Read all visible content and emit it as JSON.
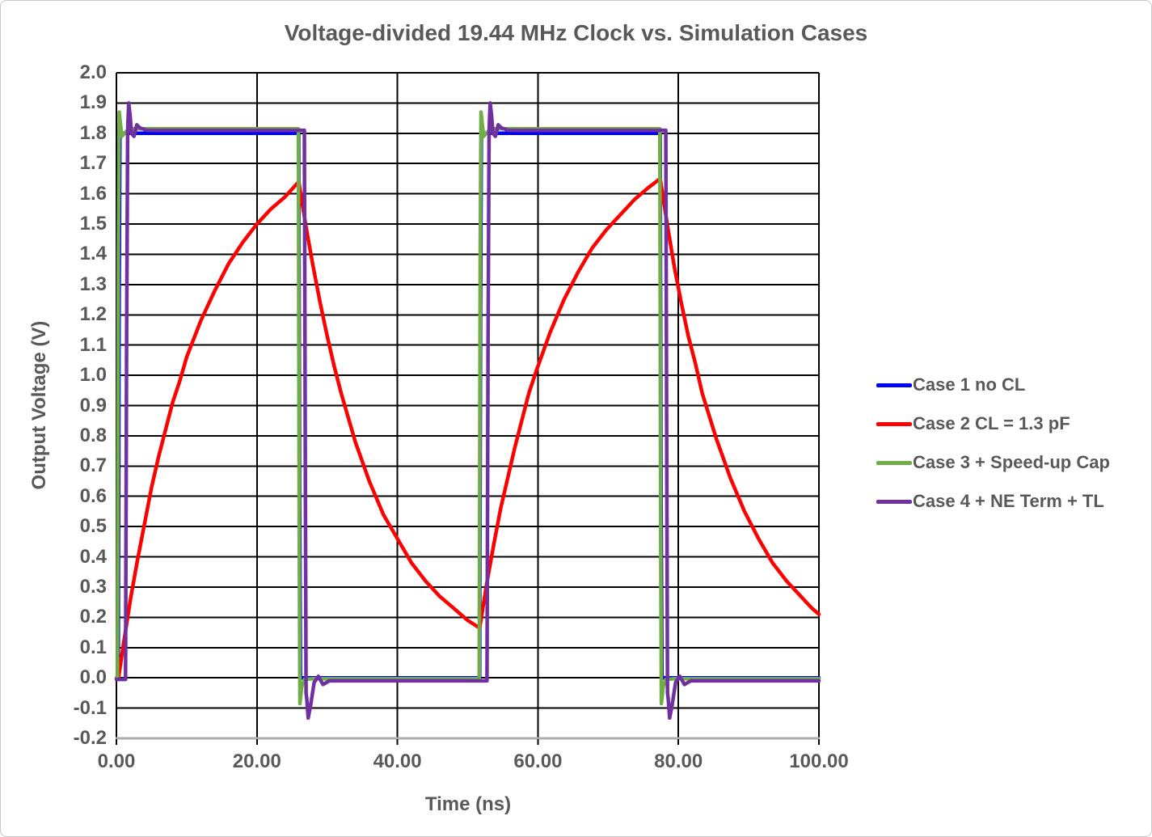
{
  "styles": {
    "text_color": "#595959",
    "grid_color": "#000000",
    "axis_line_color": "#ACACAC",
    "background": "#FFFFFF",
    "border_color": "#C9C9C9"
  },
  "chart_data": {
    "type": "line",
    "title": "Voltage-divided 19.44 MHz Clock vs. Simulation Cases",
    "xlabel": "Time (ns)",
    "ylabel": "Output Voltage (V)",
    "xlim": [
      0,
      100
    ],
    "ylim": [
      -0.2,
      2.0
    ],
    "grid": "both-black",
    "legend_position": "right",
    "clock_frequency_mhz": 19.44,
    "x_ticks": [
      {
        "value": 0,
        "label": "0.00"
      },
      {
        "value": 20,
        "label": "20.00"
      },
      {
        "value": 40,
        "label": "40.00"
      },
      {
        "value": 60,
        "label": "60.00"
      },
      {
        "value": 80,
        "label": "80.00"
      },
      {
        "value": 100,
        "label": "100.00"
      }
    ],
    "y_ticks": [
      {
        "value": 2.0,
        "label": "2.0"
      },
      {
        "value": 1.9,
        "label": "1.9"
      },
      {
        "value": 1.8,
        "label": "1.8"
      },
      {
        "value": 1.7,
        "label": "1.7"
      },
      {
        "value": 1.6,
        "label": "1.6"
      },
      {
        "value": 1.5,
        "label": "1.5"
      },
      {
        "value": 1.4,
        "label": "1.4"
      },
      {
        "value": 1.3,
        "label": "1.3"
      },
      {
        "value": 1.2,
        "label": "1.2"
      },
      {
        "value": 1.1,
        "label": "1.1"
      },
      {
        "value": 1.0,
        "label": "1.0"
      },
      {
        "value": 0.9,
        "label": "0.9"
      },
      {
        "value": 0.8,
        "label": "0.8"
      },
      {
        "value": 0.7,
        "label": "0.7"
      },
      {
        "value": 0.6,
        "label": "0.6"
      },
      {
        "value": 0.5,
        "label": "0.5"
      },
      {
        "value": 0.4,
        "label": "0.4"
      },
      {
        "value": 0.3,
        "label": "0.3"
      },
      {
        "value": 0.2,
        "label": "0.2"
      },
      {
        "value": 0.1,
        "label": "0.1"
      },
      {
        "value": 0.0,
        "label": "0.0"
      },
      {
        "value": -0.1,
        "label": "-0.1"
      },
      {
        "value": -0.2,
        "label": "-0.2"
      }
    ],
    "series": [
      {
        "name": "Case 1 no CL",
        "color": "#0000FF",
        "points": [
          [
            0,
            0
          ],
          [
            0.25,
            0
          ],
          [
            0.38,
            1.2
          ],
          [
            0.5,
            1.8
          ],
          [
            25.95,
            1.8
          ],
          [
            26.08,
            0.6
          ],
          [
            26.2,
            0
          ],
          [
            51.7,
            0
          ],
          [
            51.83,
            1.2
          ],
          [
            51.95,
            1.8
          ],
          [
            77.4,
            1.8
          ],
          [
            77.53,
            0.6
          ],
          [
            77.65,
            0
          ],
          [
            100,
            0
          ]
        ]
      },
      {
        "name": "Case 2 CL = 1.3 pF",
        "color": "#FF0000",
        "points": [
          [
            0,
            0
          ],
          [
            0.3,
            0
          ],
          [
            1,
            0.11
          ],
          [
            2,
            0.26
          ],
          [
            3,
            0.39
          ],
          [
            4,
            0.51
          ],
          [
            5,
            0.63
          ],
          [
            6,
            0.73
          ],
          [
            7,
            0.82
          ],
          [
            8,
            0.91
          ],
          [
            9,
            0.98
          ],
          [
            10,
            1.06
          ],
          [
            12,
            1.18
          ],
          [
            14,
            1.28
          ],
          [
            16,
            1.37
          ],
          [
            18,
            1.44
          ],
          [
            20,
            1.5
          ],
          [
            22,
            1.55
          ],
          [
            24,
            1.59
          ],
          [
            25.95,
            1.64
          ],
          [
            27,
            1.49
          ],
          [
            28,
            1.36
          ],
          [
            29,
            1.24
          ],
          [
            30,
            1.13
          ],
          [
            31,
            1.03
          ],
          [
            32,
            0.94
          ],
          [
            34,
            0.78
          ],
          [
            36,
            0.65
          ],
          [
            38,
            0.54
          ],
          [
            40,
            0.46
          ],
          [
            42,
            0.38
          ],
          [
            44,
            0.32
          ],
          [
            46,
            0.27
          ],
          [
            48,
            0.23
          ],
          [
            50,
            0.19
          ],
          [
            51.7,
            0.165
          ],
          [
            52.7,
            0.31
          ],
          [
            53.7,
            0.44
          ],
          [
            54.7,
            0.56
          ],
          [
            55.7,
            0.66
          ],
          [
            56.7,
            0.76
          ],
          [
            57.7,
            0.85
          ],
          [
            58.7,
            0.94
          ],
          [
            59.7,
            1.01
          ],
          [
            61.7,
            1.14
          ],
          [
            63.7,
            1.25
          ],
          [
            65.7,
            1.34
          ],
          [
            67.7,
            1.42
          ],
          [
            69.7,
            1.48
          ],
          [
            71.7,
            1.53
          ],
          [
            73.7,
            1.58
          ],
          [
            75.7,
            1.62
          ],
          [
            77.4,
            1.65
          ],
          [
            78.4,
            1.5
          ],
          [
            79.4,
            1.36
          ],
          [
            80.4,
            1.24
          ],
          [
            81.4,
            1.13
          ],
          [
            82.4,
            1.04
          ],
          [
            83.4,
            0.94
          ],
          [
            85.4,
            0.79
          ],
          [
            87.4,
            0.66
          ],
          [
            89.4,
            0.55
          ],
          [
            91.4,
            0.46
          ],
          [
            93.4,
            0.38
          ],
          [
            95.4,
            0.32
          ],
          [
            97.4,
            0.27
          ],
          [
            99,
            0.23
          ],
          [
            100,
            0.21
          ]
        ]
      },
      {
        "name": "Case 3 + Speed-up Cap",
        "color": "#70AD47",
        "points": [
          [
            0,
            0
          ],
          [
            0.15,
            0
          ],
          [
            0.28,
            1.4
          ],
          [
            0.4,
            1.87
          ],
          [
            0.58,
            1.83
          ],
          [
            0.78,
            1.79
          ],
          [
            1.15,
            1.8
          ],
          [
            1.8,
            1.815
          ],
          [
            25.9,
            1.815
          ],
          [
            26.02,
            0.5
          ],
          [
            26.12,
            -0.085
          ],
          [
            26.38,
            -0.03
          ],
          [
            26.75,
            -0.005
          ],
          [
            28,
            -0.003
          ],
          [
            51.65,
            -0.003
          ],
          [
            51.78,
            1.4
          ],
          [
            51.9,
            1.87
          ],
          [
            52.08,
            1.83
          ],
          [
            52.28,
            1.79
          ],
          [
            52.65,
            1.8
          ],
          [
            53.3,
            1.815
          ],
          [
            77.35,
            1.815
          ],
          [
            77.47,
            0.5
          ],
          [
            77.57,
            -0.085
          ],
          [
            77.83,
            -0.03
          ],
          [
            78.2,
            -0.005
          ],
          [
            79.5,
            -0.003
          ],
          [
            100,
            -0.003
          ]
        ]
      },
      {
        "name": "Case 4 + NE Term + TL",
        "color": "#7030A0",
        "points": [
          [
            0,
            -0.005
          ],
          [
            1.3,
            -0.005
          ],
          [
            1.45,
            1.1
          ],
          [
            1.6,
            1.81
          ],
          [
            1.75,
            1.9
          ],
          [
            1.95,
            1.86
          ],
          [
            2.15,
            1.8
          ],
          [
            2.5,
            1.79
          ],
          [
            2.9,
            1.828
          ],
          [
            3.35,
            1.818
          ],
          [
            4.3,
            1.81
          ],
          [
            26.75,
            1.81
          ],
          [
            26.9,
            0.6
          ],
          [
            27.0,
            -0.05
          ],
          [
            27.1,
            -0.07
          ],
          [
            27.3,
            -0.133
          ],
          [
            27.65,
            -0.09
          ],
          [
            28.15,
            -0.015
          ],
          [
            28.75,
            0.005
          ],
          [
            29.4,
            -0.022
          ],
          [
            30.3,
            -0.01
          ],
          [
            52.75,
            -0.01
          ],
          [
            52.9,
            1.1
          ],
          [
            53.05,
            1.81
          ],
          [
            53.2,
            1.9
          ],
          [
            53.4,
            1.86
          ],
          [
            53.6,
            1.8
          ],
          [
            53.95,
            1.79
          ],
          [
            54.35,
            1.828
          ],
          [
            54.8,
            1.818
          ],
          [
            55.75,
            1.81
          ],
          [
            78.2,
            1.81
          ],
          [
            78.35,
            0.6
          ],
          [
            78.45,
            -0.05
          ],
          [
            78.55,
            -0.07
          ],
          [
            78.75,
            -0.133
          ],
          [
            79.1,
            -0.09
          ],
          [
            79.6,
            -0.015
          ],
          [
            80.2,
            0.005
          ],
          [
            80.85,
            -0.022
          ],
          [
            81.75,
            -0.01
          ],
          [
            100,
            -0.01
          ]
        ]
      }
    ]
  }
}
